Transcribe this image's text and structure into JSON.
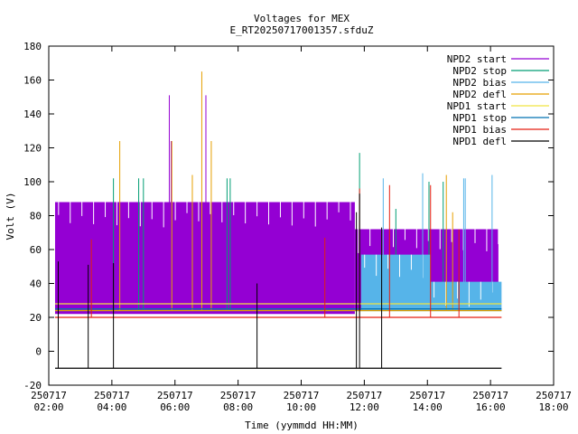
{
  "chart_data": {
    "type": "line",
    "title": "Voltages for MEX",
    "subtitle": "E_RT20250717001357.sfduZ",
    "xlabel": "Time (yymmdd HH:MM)",
    "ylabel": "Volt (V)",
    "xlim": [
      2,
      18
    ],
    "ylim": [
      -20,
      180
    ],
    "x_ticks": [
      {
        "h": 2,
        "date": "250717",
        "time": "02:00"
      },
      {
        "h": 4,
        "date": "250717",
        "time": "04:00"
      },
      {
        "h": 6,
        "date": "250717",
        "time": "06:00"
      },
      {
        "h": 8,
        "date": "250717",
        "time": "08:00"
      },
      {
        "h": 10,
        "date": "250717",
        "time": "10:00"
      },
      {
        "h": 12,
        "date": "250717",
        "time": "12:00"
      },
      {
        "h": 14,
        "date": "250717",
        "time": "14:00"
      },
      {
        "h": 16,
        "date": "250717",
        "time": "16:00"
      },
      {
        "h": 18,
        "date": "250717",
        "time": "18:00"
      }
    ],
    "y_ticks": [
      -20,
      0,
      20,
      40,
      60,
      80,
      100,
      120,
      140,
      160,
      180
    ],
    "grid": false,
    "legend_position": "top-right",
    "series": [
      {
        "name": "NPD2 start",
        "color": "#9400d3",
        "segments": [
          {
            "x0": 2.2,
            "x1": 11.7,
            "ymin": 22,
            "ymax": 88
          },
          {
            "x0": 11.7,
            "x1": 16.25,
            "ymin": 24,
            "ymax": 72
          }
        ],
        "spikes": [
          {
            "x": 5.82,
            "y": 151
          },
          {
            "x": 5.88,
            "y": 124
          },
          {
            "x": 6.98,
            "y": 151
          }
        ]
      },
      {
        "name": "NPD2 stop",
        "color": "#009e73",
        "base": 24,
        "x0": 2.2,
        "x1": 16.35,
        "spikes": [
          {
            "x": 4.05,
            "y": 102
          },
          {
            "x": 4.85,
            "y": 102
          },
          {
            "x": 5.0,
            "y": 102
          },
          {
            "x": 7.65,
            "y": 102
          },
          {
            "x": 7.75,
            "y": 102
          },
          {
            "x": 11.85,
            "y": 117
          },
          {
            "x": 13.0,
            "y": 84
          },
          {
            "x": 14.05,
            "y": 100
          },
          {
            "x": 14.5,
            "y": 100
          }
        ]
      },
      {
        "name": "NPD2 bias",
        "color": "#56b4e9",
        "segments": [
          {
            "x0": 11.9,
            "x1": 14.1,
            "ymin": 24,
            "ymax": 57
          },
          {
            "x0": 14.1,
            "x1": 16.35,
            "ymin": 24,
            "ymax": 41
          }
        ],
        "spikes": [
          {
            "x": 12.6,
            "y": 102
          },
          {
            "x": 13.85,
            "y": 105
          },
          {
            "x": 15.15,
            "y": 102
          },
          {
            "x": 15.2,
            "y": 102
          },
          {
            "x": 16.05,
            "y": 104
          }
        ]
      },
      {
        "name": "NPD2 defl",
        "color": "#e69f00",
        "base": 24,
        "x0": 2.2,
        "x1": 16.35,
        "spikes": [
          {
            "x": 4.25,
            "y": 124
          },
          {
            "x": 5.9,
            "y": 124
          },
          {
            "x": 6.55,
            "y": 104
          },
          {
            "x": 6.85,
            "y": 165
          },
          {
            "x": 7.15,
            "y": 124
          },
          {
            "x": 14.6,
            "y": 104
          },
          {
            "x": 14.8,
            "y": 82
          }
        ]
      },
      {
        "name": "NPD1 start",
        "color": "#f0e442",
        "base": 28,
        "x0": 2.2,
        "x1": 16.35,
        "spikes": []
      },
      {
        "name": "NPD1 stop",
        "color": "#0072b2",
        "base": 25,
        "x0": 2.2,
        "x1": 16.35,
        "spikes": []
      },
      {
        "name": "NPD1 bias",
        "color": "#e51e10",
        "base": 20,
        "x0": 2.2,
        "x1": 16.35,
        "spikes": [
          {
            "x": 3.35,
            "y": 66
          },
          {
            "x": 10.75,
            "y": 67
          },
          {
            "x": 11.85,
            "y": 96
          },
          {
            "x": 12.8,
            "y": 98
          },
          {
            "x": 14.1,
            "y": 98
          },
          {
            "x": 15.0,
            "y": 72
          }
        ]
      },
      {
        "name": "NPD1 defl",
        "color": "#000000",
        "base": -10,
        "x0": 2.2,
        "x1": 16.35,
        "spikes": [
          {
            "x": 2.3,
            "y": 53
          },
          {
            "x": 3.25,
            "y": 51
          },
          {
            "x": 4.05,
            "y": 52
          },
          {
            "x": 8.6,
            "y": 40
          },
          {
            "x": 11.75,
            "y": 82
          },
          {
            "x": 11.85,
            "y": 93
          },
          {
            "x": 12.55,
            "y": 73
          }
        ]
      }
    ]
  }
}
